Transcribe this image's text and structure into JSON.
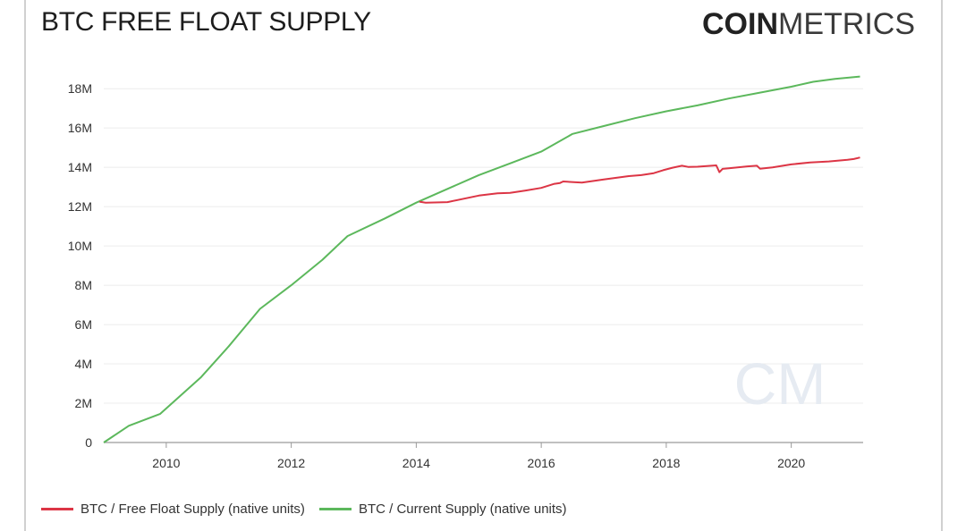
{
  "header": {
    "title": "BTC FREE FLOAT SUPPLY",
    "logo_bold": "COIN",
    "logo_light": "METRICS"
  },
  "watermark": "CM",
  "colors": {
    "free_float": "#dc3545",
    "current_supply": "#5cb85c"
  },
  "chart_data": {
    "type": "line",
    "title": "BTC FREE FLOAT SUPPLY",
    "xlabel": "",
    "ylabel": "",
    "xlim": [
      2009.0,
      2021.15
    ],
    "ylim": [
      0,
      18600000
    ],
    "grid": true,
    "legend_position": "bottom-left",
    "x_ticks": [
      {
        "value": 2010,
        "label": "2010"
      },
      {
        "value": 2012,
        "label": "2012"
      },
      {
        "value": 2014,
        "label": "2014"
      },
      {
        "value": 2016,
        "label": "2016"
      },
      {
        "value": 2018,
        "label": "2018"
      },
      {
        "value": 2020,
        "label": "2020"
      }
    ],
    "y_ticks": [
      {
        "value": 0,
        "label": "0"
      },
      {
        "value": 2000000,
        "label": "2M"
      },
      {
        "value": 4000000,
        "label": "4M"
      },
      {
        "value": 6000000,
        "label": "6M"
      },
      {
        "value": 8000000,
        "label": "8M"
      },
      {
        "value": 10000000,
        "label": "10M"
      },
      {
        "value": 12000000,
        "label": "12M"
      },
      {
        "value": 14000000,
        "label": "14M"
      },
      {
        "value": 16000000,
        "label": "16M"
      },
      {
        "value": 18000000,
        "label": "18M"
      }
    ],
    "series": [
      {
        "name": "BTC / Free Float Supply (native units)",
        "color": "#dc3545",
        "points": [
          [
            2014.05,
            12250000
          ],
          [
            2014.15,
            12200000
          ],
          [
            2014.5,
            12230000
          ],
          [
            2015.0,
            12560000
          ],
          [
            2015.3,
            12680000
          ],
          [
            2015.5,
            12700000
          ],
          [
            2015.75,
            12820000
          ],
          [
            2016.0,
            12950000
          ],
          [
            2016.2,
            13150000
          ],
          [
            2016.3,
            13200000
          ],
          [
            2016.35,
            13280000
          ],
          [
            2016.55,
            13240000
          ],
          [
            2016.65,
            13220000
          ],
          [
            2017.0,
            13380000
          ],
          [
            2017.4,
            13550000
          ],
          [
            2017.6,
            13600000
          ],
          [
            2017.8,
            13700000
          ],
          [
            2017.95,
            13850000
          ],
          [
            2018.1,
            13980000
          ],
          [
            2018.25,
            14080000
          ],
          [
            2018.35,
            14020000
          ],
          [
            2018.5,
            14030000
          ],
          [
            2018.8,
            14100000
          ],
          [
            2018.85,
            13750000
          ],
          [
            2018.9,
            13920000
          ],
          [
            2019.0,
            13950000
          ],
          [
            2019.3,
            14050000
          ],
          [
            2019.45,
            14080000
          ],
          [
            2019.5,
            13930000
          ],
          [
            2019.7,
            14000000
          ],
          [
            2020.0,
            14150000
          ],
          [
            2020.3,
            14250000
          ],
          [
            2020.6,
            14300000
          ],
          [
            2020.9,
            14380000
          ],
          [
            2021.0,
            14420000
          ],
          [
            2021.1,
            14500000
          ]
        ]
      },
      {
        "name": "BTC / Current Supply (native units)",
        "color": "#5cb85c",
        "points": [
          [
            2009.0,
            0
          ],
          [
            2009.4,
            850000
          ],
          [
            2009.9,
            1450000
          ],
          [
            2010.55,
            3300000
          ],
          [
            2011.0,
            4900000
          ],
          [
            2011.5,
            6800000
          ],
          [
            2012.0,
            8000000
          ],
          [
            2012.5,
            9300000
          ],
          [
            2012.9,
            10500000
          ],
          [
            2013.5,
            11400000
          ],
          [
            2014.0,
            12200000
          ],
          [
            2014.5,
            12900000
          ],
          [
            2015.0,
            13600000
          ],
          [
            2015.5,
            14200000
          ],
          [
            2016.0,
            14800000
          ],
          [
            2016.5,
            15700000
          ],
          [
            2017.0,
            16100000
          ],
          [
            2017.5,
            16500000
          ],
          [
            2018.0,
            16850000
          ],
          [
            2018.5,
            17150000
          ],
          [
            2019.0,
            17500000
          ],
          [
            2019.5,
            17800000
          ],
          [
            2020.0,
            18100000
          ],
          [
            2020.35,
            18350000
          ],
          [
            2020.7,
            18500000
          ],
          [
            2021.1,
            18620000
          ]
        ]
      }
    ]
  }
}
